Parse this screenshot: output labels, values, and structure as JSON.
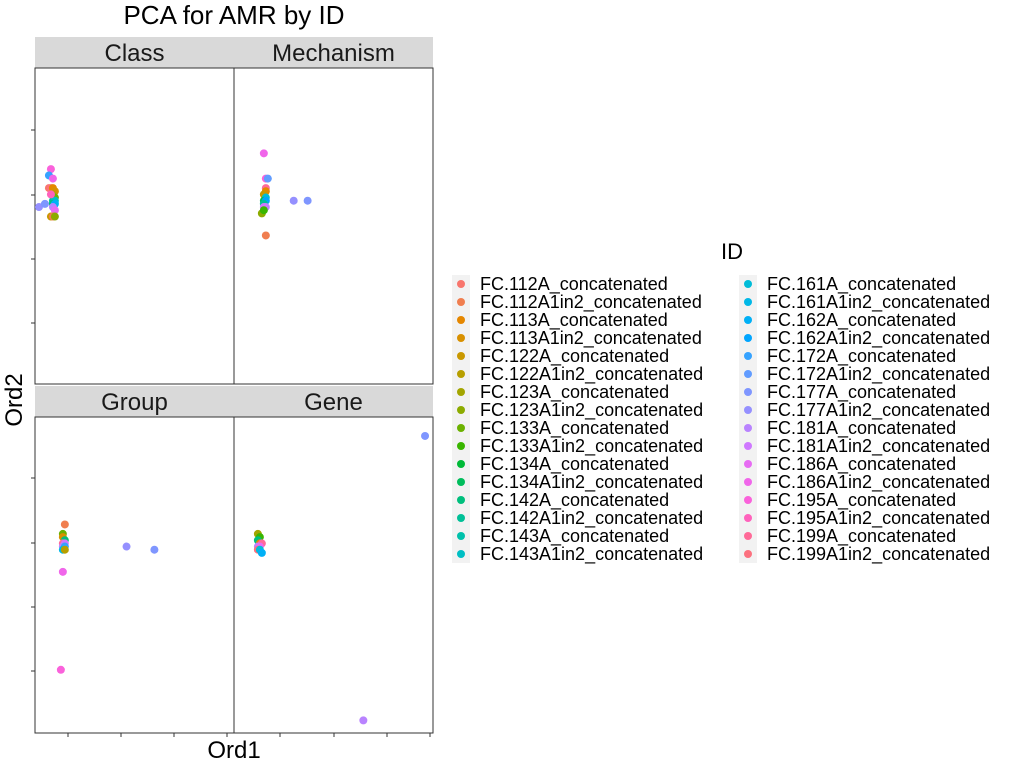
{
  "chart_data": {
    "type": "scatter",
    "title": "PCA for AMR by ID",
    "xlabel": "Ord1",
    "ylabel": "Ord2",
    "grid": false,
    "legend": {
      "title": "ID",
      "placement": "right",
      "columns": 2,
      "entries": [
        {
          "label": "FC.112A_concatenated",
          "color": "#F8766D"
        },
        {
          "label": "FC.112A1in2_concatenated",
          "color": "#F07E4F"
        },
        {
          "label": "FC.113A_concatenated",
          "color": "#E58700"
        },
        {
          "label": "FC.113A1in2_concatenated",
          "color": "#D89000"
        },
        {
          "label": "FC.122A_concatenated",
          "color": "#C99800"
        },
        {
          "label": "FC.122A1in2_concatenated",
          "color": "#B79F00"
        },
        {
          "label": "FC.123A_concatenated",
          "color": "#A3A500"
        },
        {
          "label": "FC.123A1in2_concatenated",
          "color": "#8CAB00"
        },
        {
          "label": "FC.133A_concatenated",
          "color": "#6BB100"
        },
        {
          "label": "FC.133A1in2_concatenated",
          "color": "#39B600"
        },
        {
          "label": "FC.134A_concatenated",
          "color": "#00BA38"
        },
        {
          "label": "FC.134A1in2_concatenated",
          "color": "#00BD5C"
        },
        {
          "label": "FC.142A_concatenated",
          "color": "#00BF7D"
        },
        {
          "label": "FC.142A1in2_concatenated",
          "color": "#00C097"
        },
        {
          "label": "FC.143A_concatenated",
          "color": "#00C1AB"
        },
        {
          "label": "FC.143A1in2_concatenated",
          "color": "#00BFC4"
        },
        {
          "label": "FC.161A_concatenated",
          "color": "#00BCD8"
        },
        {
          "label": "FC.161A1in2_concatenated",
          "color": "#00B8E7"
        },
        {
          "label": "FC.162A_concatenated",
          "color": "#00B0F6"
        },
        {
          "label": "FC.162A1in2_concatenated",
          "color": "#00A5FF"
        },
        {
          "label": "FC.172A_concatenated",
          "color": "#35A2FF"
        },
        {
          "label": "FC.172A1in2_concatenated",
          "color": "#619CFF"
        },
        {
          "label": "FC.177A_concatenated",
          "color": "#7F96FF"
        },
        {
          "label": "FC.177A1in2_concatenated",
          "color": "#9590FF"
        },
        {
          "label": "FC.181A_concatenated",
          "color": "#B983FF"
        },
        {
          "label": "FC.181A1in2_concatenated",
          "color": "#CF78FF"
        },
        {
          "label": "FC.186A_concatenated",
          "color": "#E76BF3"
        },
        {
          "label": "FC.186A1in2_concatenated",
          "color": "#F066EA"
        },
        {
          "label": "FC.195A_concatenated",
          "color": "#FA62DB"
        },
        {
          "label": "FC.195A1in2_concatenated",
          "color": "#FF62BC"
        },
        {
          "label": "FC.199A_concatenated",
          "color": "#FF6A98"
        },
        {
          "label": "FC.199A1in2_concatenated",
          "color": "#FC717F"
        }
      ]
    },
    "xlim": [
      0,
      100
    ],
    "ylim": [
      0,
      100
    ],
    "facets": [
      {
        "name": "Class",
        "points": [
          {
            "x": 2,
            "y": 56,
            "id": 23
          },
          {
            "x": 5,
            "y": 57,
            "id": 22
          },
          {
            "x": 8,
            "y": 68,
            "id": 28
          },
          {
            "x": 7,
            "y": 66,
            "id": 20
          },
          {
            "x": 9,
            "y": 65,
            "id": 27
          },
          {
            "x": 7,
            "y": 62,
            "id": 0
          },
          {
            "x": 8,
            "y": 62,
            "id": 31
          },
          {
            "x": 9,
            "y": 61,
            "id": 1
          },
          {
            "x": 9,
            "y": 62,
            "id": 2
          },
          {
            "x": 10,
            "y": 61,
            "id": 3
          },
          {
            "x": 9,
            "y": 60,
            "id": 5
          },
          {
            "x": 10,
            "y": 59,
            "id": 8
          },
          {
            "x": 9,
            "y": 58,
            "id": 13
          },
          {
            "x": 10,
            "y": 58,
            "id": 15
          },
          {
            "x": 9,
            "y": 57,
            "id": 12
          },
          {
            "x": 10,
            "y": 57,
            "id": 18
          },
          {
            "x": 9,
            "y": 56,
            "id": 24
          },
          {
            "x": 10,
            "y": 55,
            "id": 26
          },
          {
            "x": 8,
            "y": 53,
            "id": 4
          },
          {
            "x": 9,
            "y": 53,
            "id": 1
          },
          {
            "x": 10,
            "y": 53,
            "id": 7
          },
          {
            "x": 8,
            "y": 60,
            "id": 29
          }
        ]
      },
      {
        "name": "Mechanism",
        "points": [
          {
            "x": 15,
            "y": 73,
            "id": 27
          },
          {
            "x": 16,
            "y": 65,
            "id": 28
          },
          {
            "x": 17,
            "y": 65,
            "id": 21
          },
          {
            "x": 16,
            "y": 62,
            "id": 30
          },
          {
            "x": 16,
            "y": 61,
            "id": 2
          },
          {
            "x": 15,
            "y": 60,
            "id": 4
          },
          {
            "x": 16,
            "y": 59,
            "id": 16
          },
          {
            "x": 15,
            "y": 58,
            "id": 11
          },
          {
            "x": 16,
            "y": 58,
            "id": 19
          },
          {
            "x": 15,
            "y": 57,
            "id": 13
          },
          {
            "x": 16,
            "y": 56,
            "id": 24
          },
          {
            "x": 15,
            "y": 56,
            "id": 25
          },
          {
            "x": 14,
            "y": 54,
            "id": 7
          },
          {
            "x": 15,
            "y": 55,
            "id": 9
          },
          {
            "x": 30,
            "y": 58,
            "id": 23
          },
          {
            "x": 37,
            "y": 58,
            "id": 22
          },
          {
            "x": 16,
            "y": 47,
            "id": 1
          }
        ]
      },
      {
        "name": "Group",
        "points": [
          {
            "x": 15,
            "y": 66,
            "id": 1
          },
          {
            "x": 14,
            "y": 63,
            "id": 8
          },
          {
            "x": 14,
            "y": 62,
            "id": 3
          },
          {
            "x": 15,
            "y": 61,
            "id": 12
          },
          {
            "x": 14,
            "y": 60,
            "id": 30
          },
          {
            "x": 15,
            "y": 60,
            "id": 25
          },
          {
            "x": 14,
            "y": 59,
            "id": 24
          },
          {
            "x": 15,
            "y": 59,
            "id": 20
          },
          {
            "x": 14,
            "y": 58,
            "id": 17
          },
          {
            "x": 15,
            "y": 58,
            "id": 5
          },
          {
            "x": 14,
            "y": 51,
            "id": 27
          },
          {
            "x": 46,
            "y": 59,
            "id": 23
          },
          {
            "x": 60,
            "y": 58,
            "id": 22
          },
          {
            "x": 13,
            "y": 20,
            "id": 28
          }
        ]
      },
      {
        "name": "Gene",
        "points": [
          {
            "x": 12,
            "y": 63,
            "id": 6
          },
          {
            "x": 13,
            "y": 62,
            "id": 9
          },
          {
            "x": 12,
            "y": 61,
            "id": 12
          },
          {
            "x": 13,
            "y": 60,
            "id": 2
          },
          {
            "x": 14,
            "y": 60,
            "id": 30
          },
          {
            "x": 12,
            "y": 59,
            "id": 24
          },
          {
            "x": 13,
            "y": 59,
            "id": 26
          },
          {
            "x": 12,
            "y": 58,
            "id": 31
          },
          {
            "x": 13,
            "y": 58,
            "id": 16
          },
          {
            "x": 14,
            "y": 57,
            "id": 18
          },
          {
            "x": 96,
            "y": 94,
            "id": 22
          },
          {
            "x": 65,
            "y": 4,
            "id": 24
          }
        ]
      }
    ]
  }
}
